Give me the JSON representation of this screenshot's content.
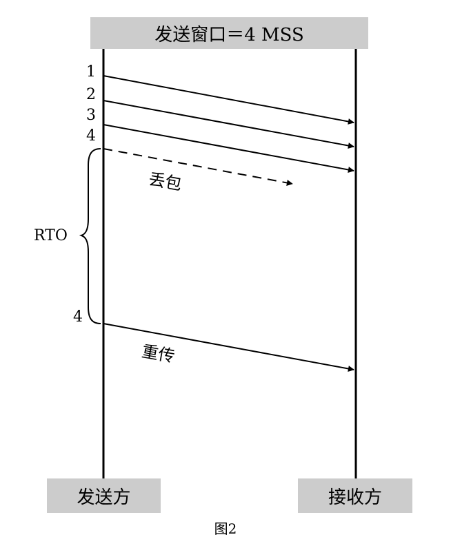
{
  "header": {
    "title": "发送窗口＝4 MSS"
  },
  "sender": {
    "label": "发送方"
  },
  "receiver": {
    "label": "接收方"
  },
  "segments": [
    "1",
    "2",
    "3",
    "4"
  ],
  "retransmit_segment": "4",
  "timer": {
    "label": "RTO"
  },
  "loss": {
    "label": "丢包"
  },
  "retransmit": {
    "label": "重传"
  },
  "caption": "图2"
}
